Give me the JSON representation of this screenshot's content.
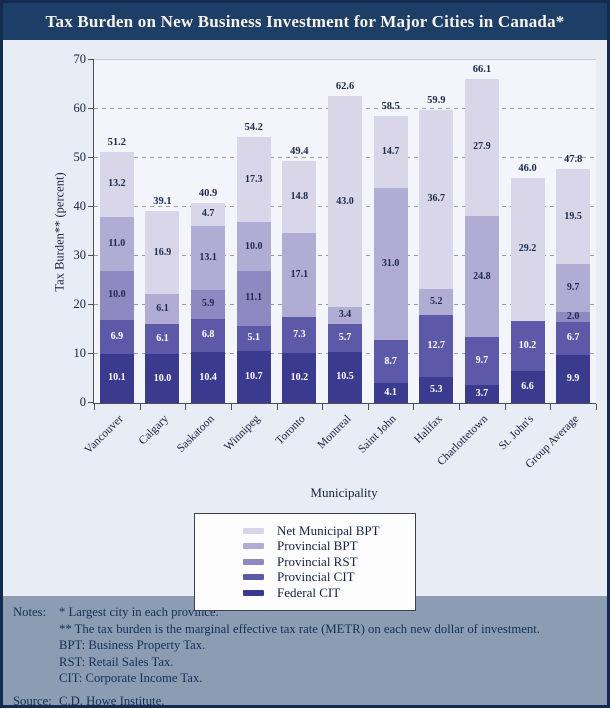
{
  "title": "Tax Burden on New Business Investment for Major Cities in Canada*",
  "chart_data": {
    "type": "bar",
    "stacked": true,
    "title": "Tax Burden on New Business Investment for Major Cities in Canada*",
    "xlabel": "Municipality",
    "ylabel": "Tax Burden** (percent)",
    "ylim": [
      0,
      70
    ],
    "yticks": [
      0,
      10,
      20,
      30,
      40,
      50,
      60,
      70
    ],
    "grid": "dashed horizontal lines at 10-60, solid light line at 70",
    "legend_position": "bottom-center boxed, listed top-to-bottom from lightest (top of stack) to darkest (bottom of stack)",
    "categories": [
      "Vancouver",
      "Calgary",
      "Saskatoon",
      "Winnipeg",
      "Toronto",
      "Montreal",
      "Saint John",
      "Halifax",
      "Charlottetown",
      "St. John's",
      "Group Average"
    ],
    "series": [
      {
        "name": "Federal CIT",
        "color": "#3a3a8e",
        "label_color": "#ffffff",
        "values": [
          10.1,
          10.0,
          10.4,
          10.7,
          10.2,
          10.5,
          4.1,
          5.3,
          3.7,
          6.6,
          9.9
        ]
      },
      {
        "name": "Provincial CIT",
        "color": "#5c5aa8",
        "label_color": "#ffffff",
        "values": [
          6.9,
          6.1,
          6.8,
          5.1,
          7.3,
          5.7,
          8.7,
          12.7,
          9.7,
          10.2,
          6.7
        ]
      },
      {
        "name": "Provincial RST",
        "color": "#8e89c0",
        "label_color": "#1e2a4e",
        "values": [
          10.0,
          null,
          5.9,
          11.1,
          null,
          null,
          null,
          null,
          null,
          null,
          2.0
        ]
      },
      {
        "name": "Provincial BPT",
        "color": "#b1acd3",
        "label_color": "#1e2a4e",
        "values": [
          11.0,
          6.1,
          13.1,
          10.0,
          17.1,
          3.4,
          31.0,
          5.2,
          24.8,
          null,
          9.7
        ]
      },
      {
        "name": "Net Municipal BPT",
        "color": "#d8d6e8",
        "label_color": "#1e2a4e",
        "values": [
          13.2,
          16.9,
          4.7,
          17.3,
          14.8,
          43.0,
          14.7,
          36.7,
          27.9,
          29.2,
          19.5
        ]
      }
    ],
    "totals": [
      51.2,
      39.1,
      40.9,
      54.2,
      49.4,
      62.6,
      58.5,
      59.9,
      66.1,
      46.0,
      47.8
    ]
  },
  "notes": {
    "label": "Notes:",
    "lines": [
      "* Largest city in each province.",
      "** The tax burden is the marginal effective tax rate (METR) on each new dollar of investment.",
      "BPT: Business Property Tax.",
      "RST: Retail Sales Tax.",
      "CIT: Corporate Income Tax."
    ],
    "source_label": "Source:",
    "source": "C.D. Howe Institute."
  }
}
